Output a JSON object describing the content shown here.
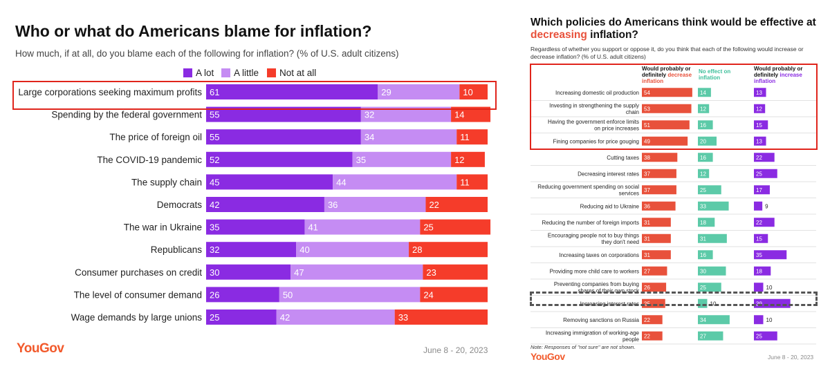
{
  "left": {
    "title": "Who or what do Americans blame for inflation?",
    "subtitle": "How much, if at all, do you blame each of the following for inflation? (% of U.S. adult citizens)",
    "legend": [
      {
        "label": "A lot",
        "color": "#8a2be2"
      },
      {
        "label": "A little",
        "color": "#c58cf3"
      },
      {
        "label": "Not at all",
        "color": "#f53c2a"
      }
    ],
    "logo": "YouGov",
    "date": "June 8 - 20, 2023"
  },
  "right": {
    "title_part1": "Which policies do Americans think would be effective at",
    "title_accent": "decreasing",
    "title_part2": " inflation?",
    "subtitle": "Regardless of whether you support or oppose it, do you think that each of the following would increase or decrease inflation? (% of U.S. adult citizens)",
    "col_heads": [
      {
        "line1": "Would probably or",
        "line2": "definitely",
        "accent": "decrease",
        "line3": "inflation",
        "color": "#e8513b"
      },
      {
        "line1": "",
        "line2": "",
        "accent": "No effect on",
        "line3": "inflation",
        "color": "#3dbf9a"
      },
      {
        "line1": "Would probably or",
        "line2": "definitely",
        "accent": "increase",
        "line3": "inflation",
        "color": "#8a2be2"
      }
    ],
    "note": "Note: Responses of \"not sure\" are not shown.",
    "logo": "YouGov",
    "date": "June 8 - 20, 2023"
  },
  "chart_data": [
    {
      "type": "bar",
      "stacked": true,
      "orientation": "horizontal",
      "title": "Who or what do Americans blame for inflation?",
      "categories": [
        "Large corporations seeking maximum profits",
        "Spending by the federal government",
        "The price of foreign oil",
        "The COVID-19 pandemic",
        "The supply chain",
        "Democrats",
        "The war in Ukraine",
        "Republicans",
        "Consumer purchases on credit",
        "The level of consumer demand",
        "Wage demands by large unions"
      ],
      "series": [
        {
          "name": "A lot",
          "color": "#8a2be2",
          "values": [
            61,
            55,
            55,
            52,
            45,
            42,
            35,
            32,
            30,
            26,
            25
          ]
        },
        {
          "name": "A little",
          "color": "#c58cf3",
          "values": [
            29,
            32,
            34,
            35,
            44,
            36,
            41,
            40,
            47,
            50,
            42
          ]
        },
        {
          "name": "Not at all",
          "color": "#f53c2a",
          "values": [
            10,
            14,
            11,
            12,
            11,
            22,
            25,
            28,
            23,
            24,
            33
          ]
        }
      ],
      "highlighted": [
        "Large corporations seeking maximum profits"
      ]
    },
    {
      "type": "bar",
      "orientation": "horizontal",
      "title": "Which policies do Americans think would be effective at decreasing inflation?",
      "categories": [
        "Increasing domestic oil production",
        "Investing in strengthening the supply chain",
        "Having the government enforce limits on price increases",
        "Fining companies for price gouging",
        "Cutting taxes",
        "Decreasing interest rates",
        "Reducing government spending on social services",
        "Reducing aid to Ukraine",
        "Reducing the number of foreign imports",
        "Encouraging people not to buy things they don't need",
        "Increasing taxes on corporations",
        "Providing more child care to workers",
        "Preventing companies from buying shares of their own stock",
        "Increasing interest rates",
        "Removing sanctions on Russia",
        "Increasing immigration of working-age people"
      ],
      "series": [
        {
          "name": "Would probably or definitely decrease inflation",
          "color": "#e8513b",
          "values": [
            54,
            53,
            51,
            49,
            38,
            37,
            37,
            36,
            31,
            31,
            31,
            27,
            26,
            25,
            22,
            22
          ]
        },
        {
          "name": "No effect on inflation",
          "color": "#5ccaa8",
          "values": [
            14,
            12,
            16,
            20,
            16,
            12,
            25,
            33,
            18,
            31,
            16,
            30,
            25,
            10,
            34,
            27
          ]
        },
        {
          "name": "Would probably or definitely increase inflation",
          "color": "#8a2be2",
          "values": [
            13,
            12,
            15,
            13,
            22,
            25,
            17,
            9,
            22,
            15,
            35,
            18,
            10,
            39,
            10,
            25
          ]
        }
      ],
      "highlighted_red": [
        "Increasing domestic oil production",
        "Investing in strengthening the supply chain",
        "Having the government enforce limits on price increases",
        "Fining companies for price gouging"
      ],
      "highlighted_gray": [
        "Increasing interest rates"
      ]
    }
  ]
}
